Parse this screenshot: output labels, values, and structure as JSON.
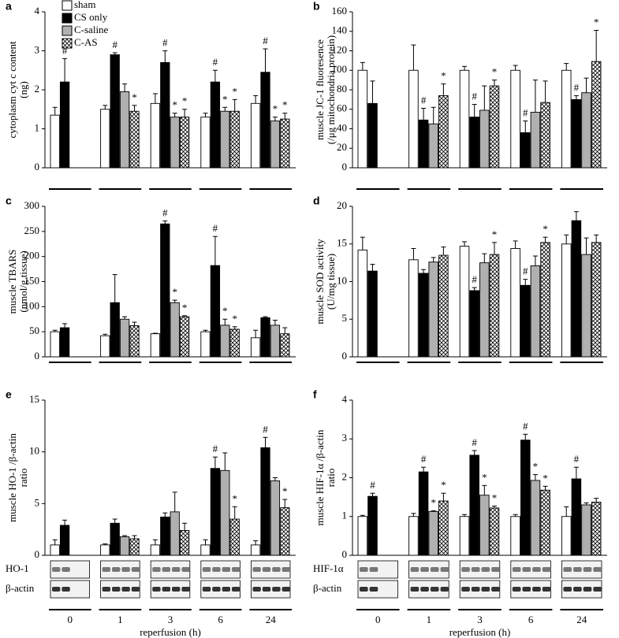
{
  "chart_data": [
    {
      "type": "bar",
      "panel": "a",
      "ylabel": [
        "cytoplasm  cyt c content",
        "(ng)"
      ],
      "categories": [
        null,
        null,
        null,
        null,
        null
      ],
      "ylim": [
        0,
        4
      ],
      "yticks": [
        0,
        1,
        2,
        3,
        4
      ],
      "legend": "upper left",
      "series": [
        {
          "name": "sham",
          "color": "#ffffff",
          "values": [
            1.35,
            1.5,
            1.65,
            1.3,
            1.65
          ],
          "errors": [
            0.2,
            0.1,
            0.25,
            0.1,
            0.2
          ],
          "markers": [
            null,
            null,
            null,
            null,
            null
          ]
        },
        {
          "name": "CS only",
          "color": "#000000",
          "values": [
            2.2,
            2.9,
            2.7,
            2.2,
            2.45
          ],
          "errors": [
            0.6,
            0.05,
            0.3,
            0.3,
            0.6
          ],
          "markers": [
            "#",
            "#",
            "#",
            "#",
            "#"
          ]
        },
        {
          "name": "C-saline",
          "color": "#b0b0b0",
          "values": [
            null,
            1.95,
            1.3,
            1.45,
            1.2
          ],
          "errors": [
            null,
            0.2,
            0.1,
            0.1,
            0.1
          ],
          "markers": [
            null,
            null,
            "*",
            "*",
            "*"
          ]
        },
        {
          "name": "C-AS",
          "color": "#ffffff",
          "pattern": "crosshatch",
          "values": [
            null,
            1.45,
            1.3,
            1.45,
            1.25
          ],
          "errors": [
            null,
            0.15,
            0.2,
            0.3,
            0.15
          ],
          "markers": [
            null,
            "*",
            "*",
            "*",
            "*"
          ]
        }
      ]
    },
    {
      "type": "bar",
      "panel": "b",
      "ylabel": [
        "muscle  JC-1 fluoresence",
        "(/μg mitochondria protein)"
      ],
      "categories": [
        null,
        null,
        null,
        null,
        null
      ],
      "ylim": [
        0,
        160
      ],
      "yticks": [
        0,
        20,
        40,
        60,
        80,
        100,
        120,
        140,
        160
      ],
      "series": [
        {
          "color": "#ffffff",
          "values": [
            100,
            100,
            100,
            100,
            100
          ],
          "errors": [
            8,
            26,
            4,
            5,
            7
          ],
          "markers": [
            null,
            null,
            null,
            null,
            null
          ]
        },
        {
          "color": "#000000",
          "values": [
            66,
            49,
            52,
            36,
            70
          ],
          "errors": [
            23,
            12,
            13,
            12,
            4
          ],
          "markers": [
            null,
            "#",
            "#",
            "#",
            "#"
          ]
        },
        {
          "color": "#b0b0b0",
          "values": [
            null,
            45,
            59,
            57,
            77
          ],
          "errors": [
            null,
            17,
            25,
            33,
            15
          ],
          "markers": [
            null,
            null,
            null,
            null,
            null
          ]
        },
        {
          "color": "#ffffff",
          "pattern": "crosshatch",
          "values": [
            null,
            74,
            84,
            67,
            109
          ],
          "errors": [
            null,
            12,
            6,
            22,
            32
          ],
          "markers": [
            null,
            "*",
            "*",
            null,
            "*"
          ]
        }
      ]
    },
    {
      "type": "bar",
      "panel": "c",
      "ylabel": [
        "muscle  TBARS",
        "(nmol/g tissue)"
      ],
      "categories": [
        null,
        null,
        null,
        null,
        null
      ],
      "ylim": [
        0,
        300
      ],
      "yticks": [
        0,
        50,
        100,
        150,
        200,
        250,
        300
      ],
      "series": [
        {
          "color": "#ffffff",
          "values": [
            50,
            42,
            46,
            50,
            38
          ],
          "errors": [
            3,
            3,
            1,
            3,
            15
          ],
          "markers": [
            null,
            null,
            null,
            null,
            null
          ]
        },
        {
          "color": "#000000",
          "values": [
            58,
            108,
            265,
            182,
            78
          ],
          "errors": [
            8,
            56,
            6,
            58,
            2
          ],
          "markers": [
            null,
            null,
            "#",
            "#",
            null
          ]
        },
        {
          "color": "#b0b0b0",
          "values": [
            null,
            75,
            108,
            63,
            63
          ],
          "errors": [
            null,
            5,
            5,
            12,
            10
          ],
          "markers": [
            null,
            null,
            "*",
            "*",
            null
          ]
        },
        {
          "color": "#ffffff",
          "pattern": "crosshatch",
          "values": [
            null,
            62,
            80,
            55,
            46
          ],
          "errors": [
            null,
            7,
            2,
            5,
            12
          ],
          "markers": [
            null,
            null,
            "*",
            "*",
            null
          ]
        }
      ]
    },
    {
      "type": "bar",
      "panel": "d",
      "ylabel": [
        "muscle  SOD activity",
        "(U/mg tissue)"
      ],
      "categories": [
        null,
        null,
        null,
        null,
        null
      ],
      "ylim": [
        0,
        20
      ],
      "yticks": [
        0,
        5,
        10,
        15,
        20
      ],
      "series": [
        {
          "color": "#ffffff",
          "values": [
            14.2,
            12.9,
            14.7,
            14.4,
            15
          ],
          "errors": [
            1.7,
            1.5,
            0.6,
            1,
            1.2
          ],
          "markers": [
            null,
            null,
            null,
            null,
            null
          ]
        },
        {
          "color": "#000000",
          "values": [
            11.4,
            11.1,
            8.8,
            9.5,
            18.1
          ],
          "errors": [
            0.9,
            0.5,
            0.4,
            0.8,
            1.2
          ],
          "markers": [
            null,
            null,
            "#",
            "#",
            null
          ]
        },
        {
          "color": "#b0b0b0",
          "values": [
            null,
            12.6,
            12.5,
            12.1,
            13.6
          ],
          "errors": [
            null,
            0.6,
            1.2,
            1.3,
            2.2
          ],
          "markers": [
            null,
            null,
            null,
            null,
            null
          ]
        },
        {
          "color": "#ffffff",
          "pattern": "crosshatch",
          "values": [
            null,
            13.5,
            13.6,
            15.2,
            15.2
          ],
          "errors": [
            null,
            1.1,
            1.6,
            0.7,
            1
          ],
          "markers": [
            null,
            null,
            "*",
            "*",
            null
          ]
        }
      ]
    },
    {
      "type": "bar",
      "panel": "e",
      "ylabel": [
        "muscle  HO-1 /β-actin",
        "ratio"
      ],
      "categories": [
        "0",
        "1",
        "3",
        "6",
        "24"
      ],
      "xlabel": "reperfusion  (h)",
      "blot_labels": [
        "HO-1",
        "β-actin"
      ],
      "ylim": [
        0,
        15
      ],
      "yticks": [
        0,
        5,
        10,
        15
      ],
      "series": [
        {
          "color": "#ffffff",
          "values": [
            1,
            1,
            1,
            1,
            1
          ],
          "errors": [
            0.5,
            0.1,
            0.5,
            0.5,
            0.4
          ],
          "markers": [
            null,
            null,
            null,
            null,
            null
          ]
        },
        {
          "color": "#000000",
          "values": [
            2.9,
            3.1,
            3.7,
            8.4,
            10.4
          ],
          "errors": [
            0.5,
            0.4,
            0.4,
            1.1,
            1
          ],
          "markers": [
            null,
            null,
            null,
            "#",
            "#"
          ]
        },
        {
          "color": "#b0b0b0",
          "values": [
            null,
            1.8,
            4.2,
            8.2,
            7.2
          ],
          "errors": [
            null,
            0.1,
            1.9,
            1.7,
            0.3
          ],
          "markers": [
            null,
            null,
            null,
            null,
            null
          ]
        },
        {
          "color": "#ffffff",
          "pattern": "crosshatch",
          "values": [
            null,
            1.6,
            2.4,
            3.5,
            4.6
          ],
          "errors": [
            null,
            0.3,
            0.7,
            1.2,
            0.8
          ],
          "markers": [
            null,
            null,
            null,
            "*",
            "*"
          ]
        }
      ]
    },
    {
      "type": "bar",
      "panel": "f",
      "ylabel": [
        "muscle  HIF-1α /β-actin",
        "ratio"
      ],
      "categories": [
        "0",
        "1",
        "3",
        "6",
        "24"
      ],
      "xlabel": "reperfusion  (h)",
      "blot_labels": [
        "HIF-1α",
        "β-actin"
      ],
      "ylim": [
        0,
        4
      ],
      "yticks": [
        0,
        1,
        2,
        3,
        4
      ],
      "series": [
        {
          "color": "#ffffff",
          "values": [
            1,
            1,
            1,
            1,
            1
          ],
          "errors": [
            0.03,
            0.08,
            0.05,
            0.05,
            0.25
          ],
          "markers": [
            null,
            null,
            null,
            null,
            null
          ]
        },
        {
          "color": "#000000",
          "values": [
            1.52,
            2.15,
            2.58,
            2.97,
            1.97
          ],
          "errors": [
            0.08,
            0.12,
            0.12,
            0.15,
            0.3
          ],
          "markers": [
            "#",
            "#",
            "#",
            "#",
            "#"
          ]
        },
        {
          "color": "#b0b0b0",
          "values": [
            null,
            1.13,
            1.55,
            1.93,
            1.3
          ],
          "errors": [
            null,
            0.02,
            0.25,
            0.15,
            0.05
          ],
          "markers": [
            null,
            "*",
            "*",
            "*",
            null
          ]
        },
        {
          "color": "#ffffff",
          "pattern": "crosshatch",
          "values": [
            null,
            1.4,
            1.22,
            1.68,
            1.37
          ],
          "errors": [
            null,
            0.2,
            0.05,
            0.1,
            0.1
          ],
          "markers": [
            null,
            "*",
            "*",
            "*",
            null
          ]
        }
      ]
    }
  ]
}
